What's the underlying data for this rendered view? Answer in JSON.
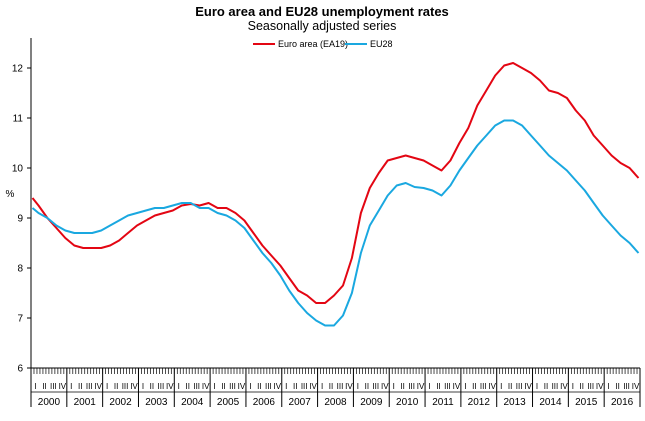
{
  "chart_data": {
    "type": "line",
    "title": "Euro area and EU28 unemployment rates",
    "subtitle": "Seasonally adjusted series",
    "ylabel": "%",
    "xlabel": "",
    "ylim": [
      6,
      12.6
    ],
    "yticks": [
      6,
      7,
      8,
      9,
      10,
      11,
      12
    ],
    "grid": false,
    "legend_position": "top-center",
    "x_start": "2000-01",
    "x_end": "2016-12",
    "quarter_labels": [
      "I",
      "II",
      "III",
      "IV"
    ],
    "years": [
      "2000",
      "2001",
      "2002",
      "2003",
      "2004",
      "2005",
      "2006",
      "2007",
      "2008",
      "2009",
      "2010",
      "2011",
      "2012",
      "2013",
      "2014",
      "2015",
      "2016"
    ],
    "series": [
      {
        "name": "Euro area (EA19)",
        "color": "#e30613",
        "points": [
          [
            "2000-01",
            9.4
          ],
          [
            "2000-03",
            9.25
          ],
          [
            "2000-06",
            9.0
          ],
          [
            "2000-09",
            8.8
          ],
          [
            "2000-12",
            8.6
          ],
          [
            "2001-03",
            8.45
          ],
          [
            "2001-06",
            8.4
          ],
          [
            "2001-09",
            8.4
          ],
          [
            "2001-12",
            8.4
          ],
          [
            "2002-03",
            8.45
          ],
          [
            "2002-06",
            8.55
          ],
          [
            "2002-09",
            8.7
          ],
          [
            "2002-12",
            8.85
          ],
          [
            "2003-03",
            8.95
          ],
          [
            "2003-06",
            9.05
          ],
          [
            "2003-09",
            9.1
          ],
          [
            "2003-12",
            9.15
          ],
          [
            "2004-03",
            9.25
          ],
          [
            "2004-06",
            9.28
          ],
          [
            "2004-09",
            9.25
          ],
          [
            "2004-12",
            9.3
          ],
          [
            "2005-03",
            9.2
          ],
          [
            "2005-06",
            9.2
          ],
          [
            "2005-09",
            9.1
          ],
          [
            "2005-12",
            8.95
          ],
          [
            "2006-03",
            8.7
          ],
          [
            "2006-06",
            8.45
          ],
          [
            "2006-09",
            8.25
          ],
          [
            "2006-12",
            8.05
          ],
          [
            "2007-03",
            7.8
          ],
          [
            "2007-06",
            7.55
          ],
          [
            "2007-09",
            7.45
          ],
          [
            "2007-12",
            7.3
          ],
          [
            "2008-03",
            7.3
          ],
          [
            "2008-06",
            7.45
          ],
          [
            "2008-09",
            7.65
          ],
          [
            "2008-12",
            8.2
          ],
          [
            "2009-03",
            9.1
          ],
          [
            "2009-06",
            9.6
          ],
          [
            "2009-09",
            9.9
          ],
          [
            "2009-12",
            10.15
          ],
          [
            "2010-03",
            10.2
          ],
          [
            "2010-06",
            10.25
          ],
          [
            "2010-09",
            10.2
          ],
          [
            "2010-12",
            10.15
          ],
          [
            "2011-03",
            10.05
          ],
          [
            "2011-06",
            9.95
          ],
          [
            "2011-09",
            10.15
          ],
          [
            "2011-12",
            10.5
          ],
          [
            "2012-03",
            10.8
          ],
          [
            "2012-06",
            11.25
          ],
          [
            "2012-09",
            11.55
          ],
          [
            "2012-12",
            11.85
          ],
          [
            "2013-03",
            12.05
          ],
          [
            "2013-06",
            12.1
          ],
          [
            "2013-09",
            12.0
          ],
          [
            "2013-12",
            11.9
          ],
          [
            "2014-03",
            11.75
          ],
          [
            "2014-06",
            11.55
          ],
          [
            "2014-09",
            11.5
          ],
          [
            "2014-12",
            11.4
          ],
          [
            "2015-03",
            11.15
          ],
          [
            "2015-06",
            10.95
          ],
          [
            "2015-09",
            10.65
          ],
          [
            "2015-12",
            10.45
          ],
          [
            "2016-03",
            10.25
          ],
          [
            "2016-06",
            10.1
          ],
          [
            "2016-09",
            10.0
          ],
          [
            "2016-12",
            9.8
          ]
        ]
      },
      {
        "name": "EU28",
        "color": "#1aa8e0",
        "points": [
          [
            "2000-01",
            9.2
          ],
          [
            "2000-03",
            9.1
          ],
          [
            "2000-06",
            9.0
          ],
          [
            "2000-09",
            8.85
          ],
          [
            "2000-12",
            8.75
          ],
          [
            "2001-03",
            8.7
          ],
          [
            "2001-06",
            8.7
          ],
          [
            "2001-09",
            8.7
          ],
          [
            "2001-12",
            8.75
          ],
          [
            "2002-03",
            8.85
          ],
          [
            "2002-06",
            8.95
          ],
          [
            "2002-09",
            9.05
          ],
          [
            "2002-12",
            9.1
          ],
          [
            "2003-03",
            9.15
          ],
          [
            "2003-06",
            9.2
          ],
          [
            "2003-09",
            9.2
          ],
          [
            "2003-12",
            9.25
          ],
          [
            "2004-03",
            9.3
          ],
          [
            "2004-06",
            9.3
          ],
          [
            "2004-09",
            9.2
          ],
          [
            "2004-12",
            9.2
          ],
          [
            "2005-03",
            9.1
          ],
          [
            "2005-06",
            9.05
          ],
          [
            "2005-09",
            8.95
          ],
          [
            "2005-12",
            8.8
          ],
          [
            "2006-03",
            8.55
          ],
          [
            "2006-06",
            8.3
          ],
          [
            "2006-09",
            8.1
          ],
          [
            "2006-12",
            7.85
          ],
          [
            "2007-03",
            7.55
          ],
          [
            "2007-06",
            7.3
          ],
          [
            "2007-09",
            7.1
          ],
          [
            "2007-12",
            6.95
          ],
          [
            "2008-03",
            6.85
          ],
          [
            "2008-06",
            6.85
          ],
          [
            "2008-09",
            7.05
          ],
          [
            "2008-12",
            7.5
          ],
          [
            "2009-03",
            8.3
          ],
          [
            "2009-06",
            8.85
          ],
          [
            "2009-09",
            9.15
          ],
          [
            "2009-12",
            9.45
          ],
          [
            "2010-03",
            9.65
          ],
          [
            "2010-06",
            9.7
          ],
          [
            "2010-09",
            9.62
          ],
          [
            "2010-12",
            9.6
          ],
          [
            "2011-03",
            9.55
          ],
          [
            "2011-06",
            9.45
          ],
          [
            "2011-09",
            9.65
          ],
          [
            "2011-12",
            9.95
          ],
          [
            "2012-03",
            10.2
          ],
          [
            "2012-06",
            10.45
          ],
          [
            "2012-09",
            10.65
          ],
          [
            "2012-12",
            10.85
          ],
          [
            "2013-03",
            10.95
          ],
          [
            "2013-06",
            10.95
          ],
          [
            "2013-09",
            10.85
          ],
          [
            "2013-12",
            10.65
          ],
          [
            "2014-03",
            10.45
          ],
          [
            "2014-06",
            10.25
          ],
          [
            "2014-09",
            10.1
          ],
          [
            "2014-12",
            9.95
          ],
          [
            "2015-03",
            9.75
          ],
          [
            "2015-06",
            9.55
          ],
          [
            "2015-09",
            9.3
          ],
          [
            "2015-12",
            9.05
          ],
          [
            "2016-03",
            8.85
          ],
          [
            "2016-06",
            8.65
          ],
          [
            "2016-09",
            8.5
          ],
          [
            "2016-12",
            8.3
          ]
        ]
      }
    ]
  }
}
